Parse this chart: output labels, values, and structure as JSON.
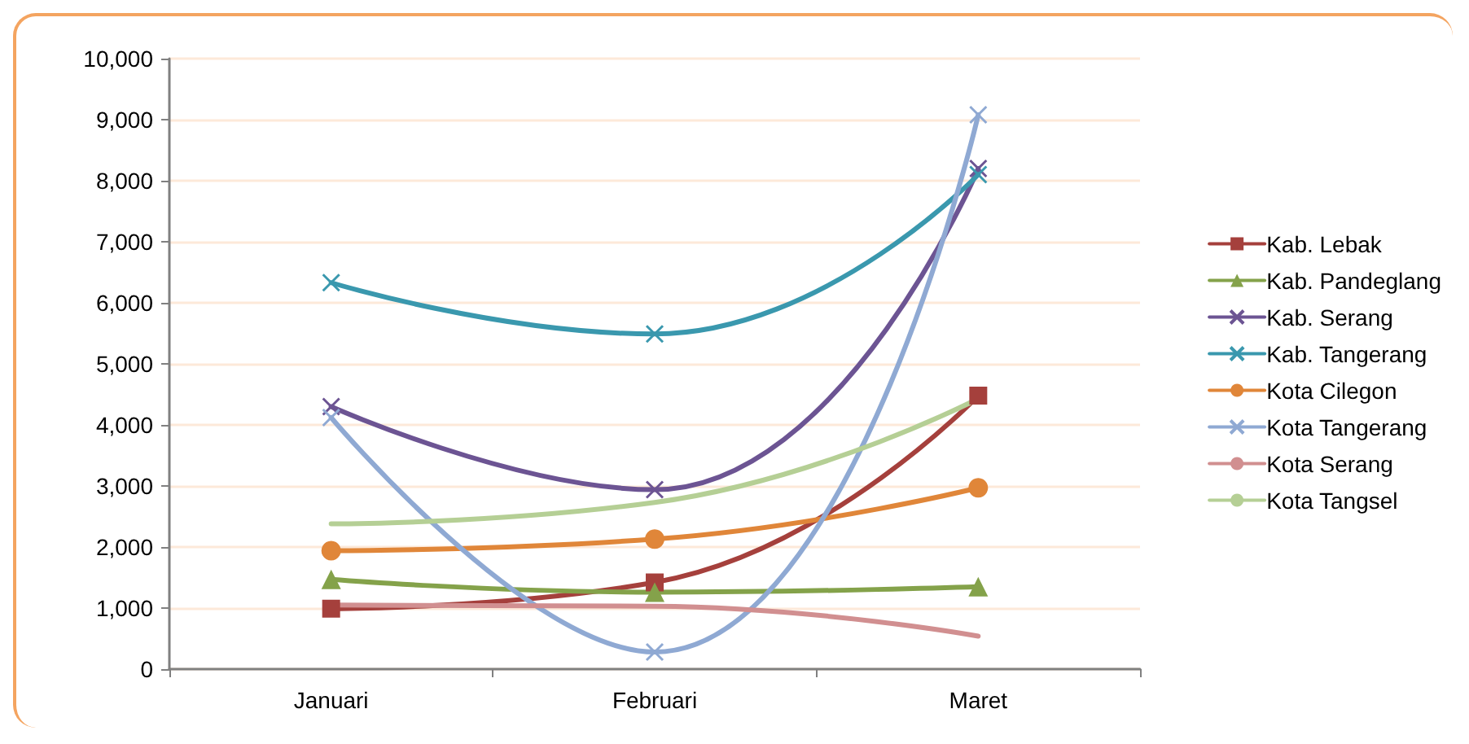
{
  "chart_data": {
    "type": "line",
    "categories": [
      "Januari",
      "Februari",
      "Maret"
    ],
    "series": [
      {
        "name": "Kab. Lebak",
        "color": "#a5403c",
        "marker": "square",
        "values": [
          990,
          1420,
          4480
        ]
      },
      {
        "name": "Kab. Pandeglang",
        "color": "#84a24a",
        "marker": "triangle",
        "values": [
          1470,
          1260,
          1350
        ]
      },
      {
        "name": "Kab. Serang",
        "color": "#6c5493",
        "marker": "cross",
        "values": [
          4300,
          2940,
          8200
        ]
      },
      {
        "name": "Kab. Tangerang",
        "color": "#3a98ae",
        "marker": "cross",
        "values": [
          6330,
          5490,
          8100
        ]
      },
      {
        "name": "Kota Cilegon",
        "color": "#e08639",
        "marker": "circle",
        "values": [
          1940,
          2130,
          2970
        ]
      },
      {
        "name": "Kota Tangerang",
        "color": "#8fa9d3",
        "marker": "cross",
        "values": [
          4120,
          280,
          9080
        ]
      },
      {
        "name": "Kota Serang",
        "color": "#d18f90",
        "marker": "none",
        "values": [
          1050,
          1030,
          540
        ]
      },
      {
        "name": "Kota Tangsel",
        "color": "#b5cf95",
        "marker": "none",
        "values": [
          2380,
          2730,
          4430
        ]
      }
    ],
    "ylim": [
      0,
      10000
    ],
    "yticks": [
      {
        "value": 0,
        "label": "0"
      },
      {
        "value": 1000,
        "label": "1,000"
      },
      {
        "value": 2000,
        "label": "2,000"
      },
      {
        "value": 3000,
        "label": "3,000"
      },
      {
        "value": 4000,
        "label": "4,000"
      },
      {
        "value": 5000,
        "label": "5,000"
      },
      {
        "value": 6000,
        "label": "6,000"
      },
      {
        "value": 7000,
        "label": "7,000"
      },
      {
        "value": 8000,
        "label": "8,000"
      },
      {
        "value": 9000,
        "label": "9,000"
      },
      {
        "value": 10000,
        "label": "10,000"
      }
    ],
    "grid": "y",
    "legend": "right",
    "line_style": "solid"
  }
}
